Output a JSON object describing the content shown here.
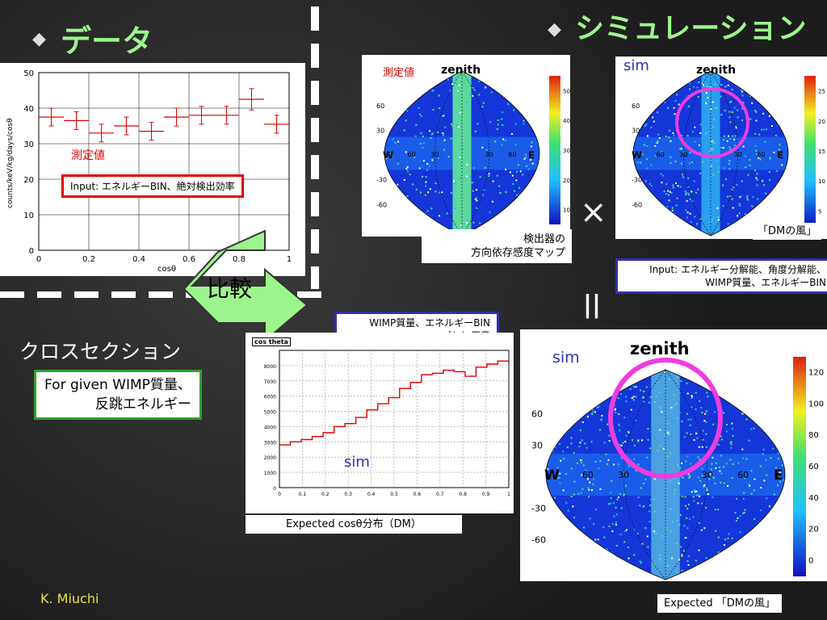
{
  "left": {
    "heading": "データ",
    "graph": {
      "ylabel": "counts/keV/kg/days/cosθ",
      "xlabel": "cosθ",
      "yticks": [
        "50",
        "40",
        "30",
        "20",
        "10",
        "0"
      ],
      "xticks": [
        "0",
        "0.2",
        "0.4",
        "0.6",
        "0.8",
        "1"
      ],
      "legend": "測定値"
    },
    "input_box": "Input: エネルギーBIN、絶対検出効率"
  },
  "right": {
    "heading": "シミュレーション",
    "map1": {
      "title": "測定値",
      "zenith": "zenith",
      "west": "W",
      "east": "E",
      "lat_labels": [
        "60",
        "30",
        "-30",
        "-60"
      ],
      "lon_labels": [
        "60",
        "30",
        "30",
        "60"
      ],
      "colorbar": [
        "50",
        "40",
        "30",
        "20",
        "10"
      ],
      "caption_line1": "検出器の",
      "caption_line2": "方向依存感度マップ"
    },
    "times": "×",
    "map2": {
      "title": "sim",
      "zenith": "zenith",
      "west": "W",
      "east": "E",
      "lat_labels": [
        "60",
        "30",
        "-30",
        "-60"
      ],
      "lon_labels": [
        "60",
        "30",
        "30",
        "60"
      ],
      "colorbar": [
        "25",
        "20",
        "15",
        "10",
        "5"
      ],
      "caption": "「DMの風」"
    },
    "input_box_line1": "Input: エネルギー分解能、角度分解能、",
    "input_box_line2": "WIMP質量、エネルギーBIN",
    "equals": "||",
    "map3": {
      "title": "sim",
      "zenith": "zenith",
      "west": "W",
      "east": "E",
      "lat_labels": [
        "60",
        "30",
        "-30",
        "-60"
      ],
      "lon_labels": [
        "60",
        "30",
        "30",
        "60"
      ],
      "colorbar": [
        "120",
        "100",
        "80",
        "60",
        "40",
        "20",
        "0"
      ],
      "caption": "Expected 「DMの風」"
    }
  },
  "bottom": {
    "compare": "比較",
    "cross_section": "クロスセクション",
    "for_given_line1": "For given   WIMP質量、",
    "for_given_line2": "反跳エネルギー",
    "wimp_box_line1": "WIMP質量、エネルギーBIN",
    "wimp_box_line2": "ごとに用意",
    "hist": {
      "title": "cos theta",
      "label": "sim",
      "caption": "Expected cosθ分布（DM）"
    },
    "author": "K. Miuchi"
  },
  "colors": {
    "heading": "#9cf58c",
    "red": "#e00000",
    "blue": "#3030b0",
    "green": "#30a030",
    "magenta": "#ee3ce0"
  },
  "chart_data": [
    {
      "type": "line",
      "xlabel": "cosθ",
      "ylabel": "counts/keV/kg/days/cosθ",
      "ylim": [
        0,
        50
      ],
      "xlim": [
        0,
        1
      ],
      "series": [
        {
          "name": "測定値",
          "x": [
            0.05,
            0.15,
            0.25,
            0.35,
            0.45,
            0.55,
            0.65,
            0.75,
            0.85,
            0.95
          ],
          "y": [
            37.5,
            36.5,
            33,
            35,
            33.5,
            37.5,
            38,
            38,
            42.5,
            35.5
          ],
          "err": [
            2.5,
            2.5,
            2.5,
            2.5,
            2.5,
            2.5,
            2.5,
            2.5,
            3,
            2.5
          ]
        }
      ]
    },
    {
      "type": "line",
      "title": "cos theta",
      "ylim": [
        0,
        9000
      ],
      "xlim": [
        0,
        1
      ],
      "yticks": [
        "8000",
        "7000",
        "6000",
        "5000",
        "4000",
        "3000",
        "2000",
        "1000",
        "0"
      ],
      "xticks": [
        "0",
        "0.1",
        "0.2",
        "0.3",
        "0.4",
        "0.5",
        "0.6",
        "0.7",
        "0.8",
        "0.9",
        "1"
      ],
      "series": [
        {
          "name": "sim",
          "y": [
            2800,
            3000,
            3150,
            3350,
            3600,
            4000,
            4200,
            4600,
            5100,
            5500,
            5900,
            6500,
            6900,
            7400,
            7500,
            7700,
            7600,
            7300,
            7900,
            8100,
            8300
          ]
        }
      ]
    }
  ]
}
